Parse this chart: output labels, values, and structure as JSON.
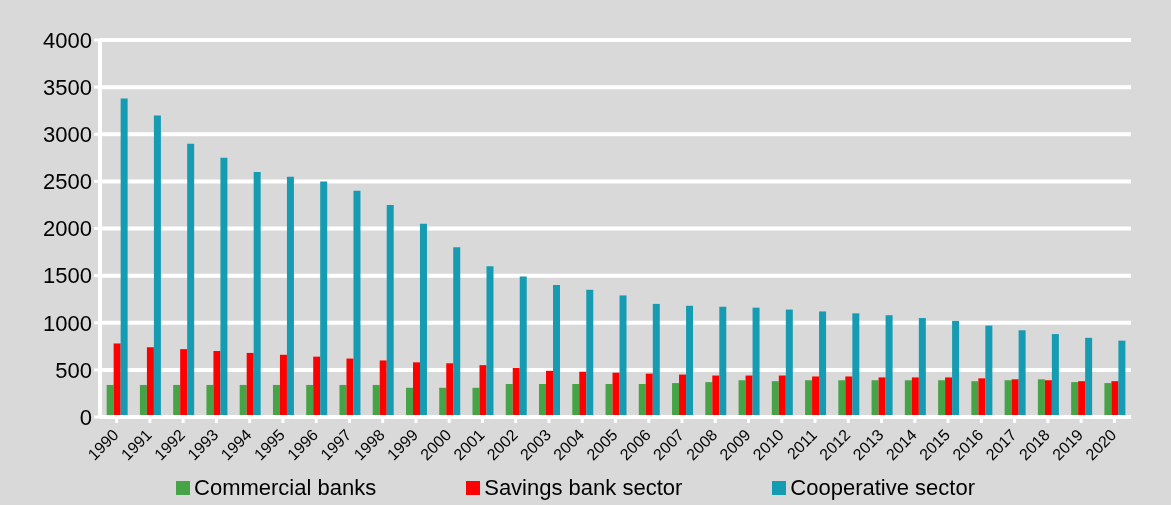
{
  "chart_data": {
    "type": "bar",
    "categories": [
      "1990",
      "1991",
      "1992",
      "1993",
      "1994",
      "1995",
      "1996",
      "1997",
      "1998",
      "1999",
      "2000",
      "2001",
      "2002",
      "2003",
      "2004",
      "2005",
      "2006",
      "2007",
      "2008",
      "2009",
      "2010",
      "2011",
      "2012",
      "2013",
      "2014",
      "2015",
      "2016",
      "2017",
      "2018",
      "2019",
      "2020"
    ],
    "series": [
      {
        "name": "Commercial banks",
        "color": "#46a446",
        "values": [
          340,
          340,
          340,
          340,
          340,
          340,
          340,
          340,
          340,
          310,
          310,
          310,
          350,
          350,
          350,
          350,
          350,
          360,
          370,
          390,
          380,
          390,
          390,
          390,
          390,
          390,
          380,
          390,
          400,
          370,
          360
        ]
      },
      {
        "name": "Savings bank sector",
        "color": "#ff0000",
        "values": [
          780,
          740,
          720,
          700,
          680,
          660,
          640,
          620,
          600,
          580,
          570,
          550,
          520,
          490,
          480,
          470,
          460,
          450,
          440,
          440,
          440,
          430,
          430,
          420,
          420,
          420,
          410,
          400,
          390,
          380,
          380
        ]
      },
      {
        "name": "Cooperative sector",
        "color": "#169cb2",
        "values": [
          3380,
          3200,
          2900,
          2750,
          2600,
          2550,
          2500,
          2400,
          2250,
          2050,
          1800,
          1600,
          1490,
          1400,
          1350,
          1290,
          1200,
          1180,
          1170,
          1160,
          1140,
          1120,
          1100,
          1080,
          1050,
          1020,
          970,
          920,
          880,
          840,
          810
        ]
      }
    ],
    "ylim": [
      0,
      4000
    ],
    "yticks": [
      0,
      500,
      1000,
      1500,
      2000,
      2500,
      3000,
      3500,
      4000
    ],
    "grid": "y",
    "legend": "bottom"
  }
}
